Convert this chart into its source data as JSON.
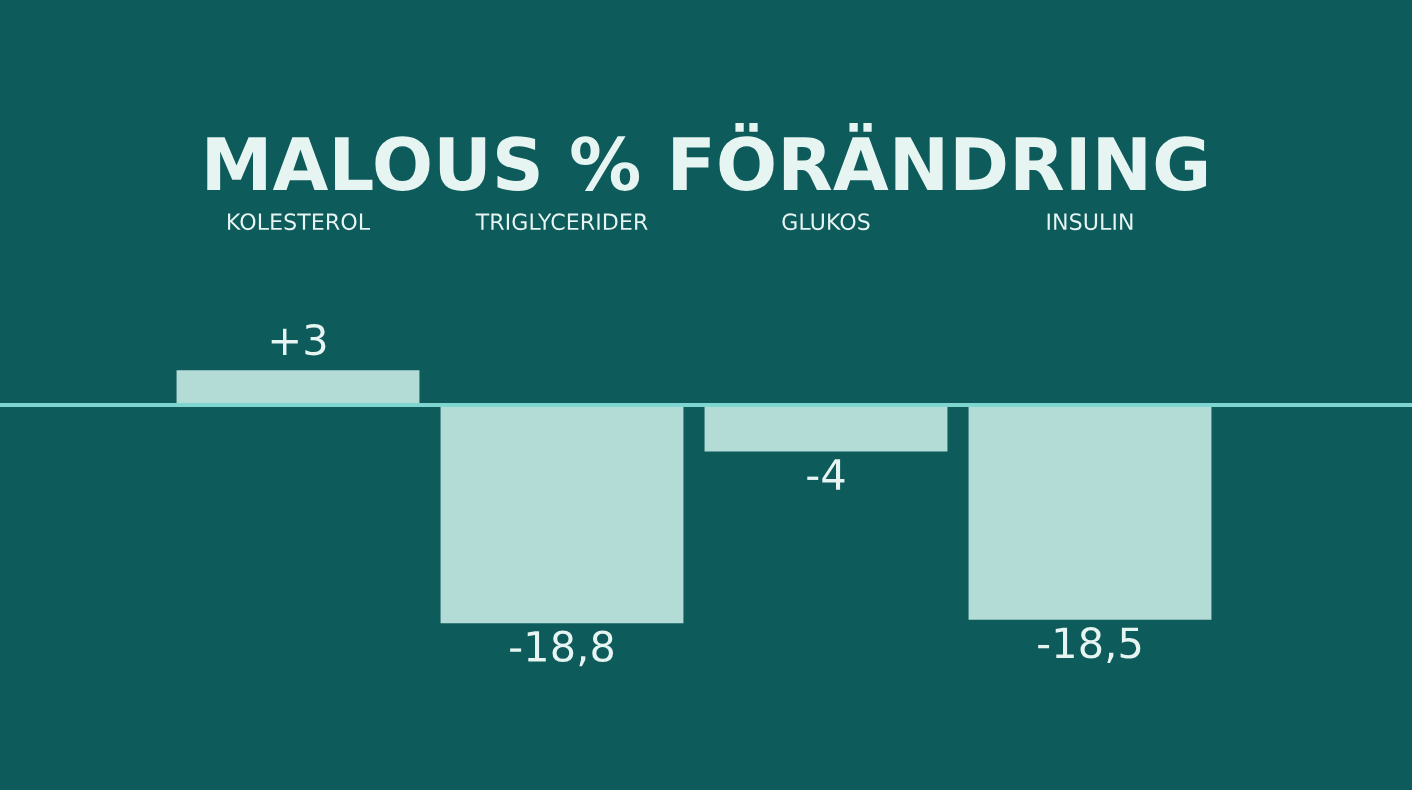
{
  "chart_data": {
    "type": "bar",
    "title": "MALOUS % FÖRÄNDRING",
    "categories": [
      "KOLESTEROL",
      "TRIGLYCERIDER",
      "GLUKOS",
      "INSULIN"
    ],
    "values": [
      3,
      -18.8,
      -4,
      -18.5
    ],
    "value_labels": [
      "+3",
      "-18,8",
      "-4",
      "-18,5"
    ],
    "color": "#b3dcd7",
    "ref_lines": [
      {
        "axis": "y",
        "value": 0,
        "color": "#7fd6d0"
      }
    ]
  }
}
